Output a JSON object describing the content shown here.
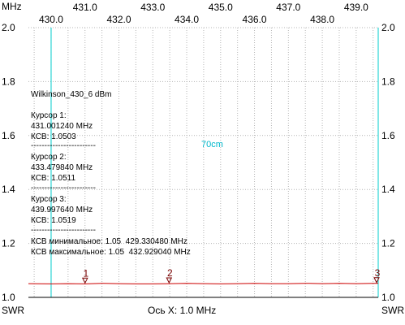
{
  "chart_data": {
    "type": "line",
    "xlabel": "Ось X: 1.0 MHz",
    "x_unit": "MHz",
    "ylabel_left": "SWR",
    "ylabel_right": "SWR",
    "xlim": [
      429.33,
      439.65
    ],
    "ylim": [
      1.0,
      2.0
    ],
    "x_ticks_top": [
      "431.0",
      "433.0",
      "435.0",
      "437.0",
      "439.0"
    ],
    "x_ticks_bottom": [
      "430.0",
      "432.0",
      "434.0",
      "436.0",
      "438.0"
    ],
    "y_ticks": [
      "2.0",
      "1.8",
      "1.6",
      "1.4",
      "1.2",
      "1.0"
    ],
    "grid": true,
    "trace_color": "#cc0000",
    "marker_color": "#00cccc",
    "series": [
      {
        "x": [
          429.33,
          430.0,
          430.5,
          431.0,
          431.5,
          432.0,
          432.5,
          433.0,
          433.5,
          434.0,
          434.5,
          435.0,
          435.5,
          436.0,
          436.5,
          437.0,
          437.5,
          438.0,
          438.5,
          439.0,
          439.5,
          439.65
        ],
        "y": [
          1.051,
          1.05,
          1.051,
          1.05,
          1.052,
          1.051,
          1.05,
          1.05,
          1.051,
          1.052,
          1.051,
          1.05,
          1.051,
          1.052,
          1.051,
          1.051,
          1.052,
          1.051,
          1.052,
          1.051,
          1.052,
          1.052
        ]
      }
    ],
    "vertical_markers": [
      {
        "x": 430.0,
        "label": ""
      },
      {
        "x": 439.65,
        "label": ""
      }
    ],
    "center_label": "70cm",
    "cursors": [
      {
        "label": "1",
        "x": 431.00124,
        "swr": 1.0503
      },
      {
        "label": "2",
        "x": 433.47984,
        "swr": 1.0511
      },
      {
        "label": "3",
        "x": 439.99764,
        "swr": 1.0519
      }
    ],
    "info": {
      "title": "Wilkinson_430_6 dBm",
      "cursor1_head": "Курсор 1:",
      "cursor1_freq": "431.001240 MHz",
      "cursor1_swr": "КСВ: 1.0503",
      "cursor2_head": "Курсор 2:",
      "cursor2_freq": "433.479840 MHz",
      "cursor2_swr": "КСВ: 1.0511",
      "cursor3_head": "Курсор 3:",
      "cursor3_freq": "439.997640 MHz",
      "cursor3_swr": "КСВ: 1.0519",
      "separator": "------------------------",
      "min_line": "КСВ минимальное: 1.05  429.330480 MHz",
      "max_line": "КСВ максимальное: 1.05  432.929040 MHz"
    }
  }
}
